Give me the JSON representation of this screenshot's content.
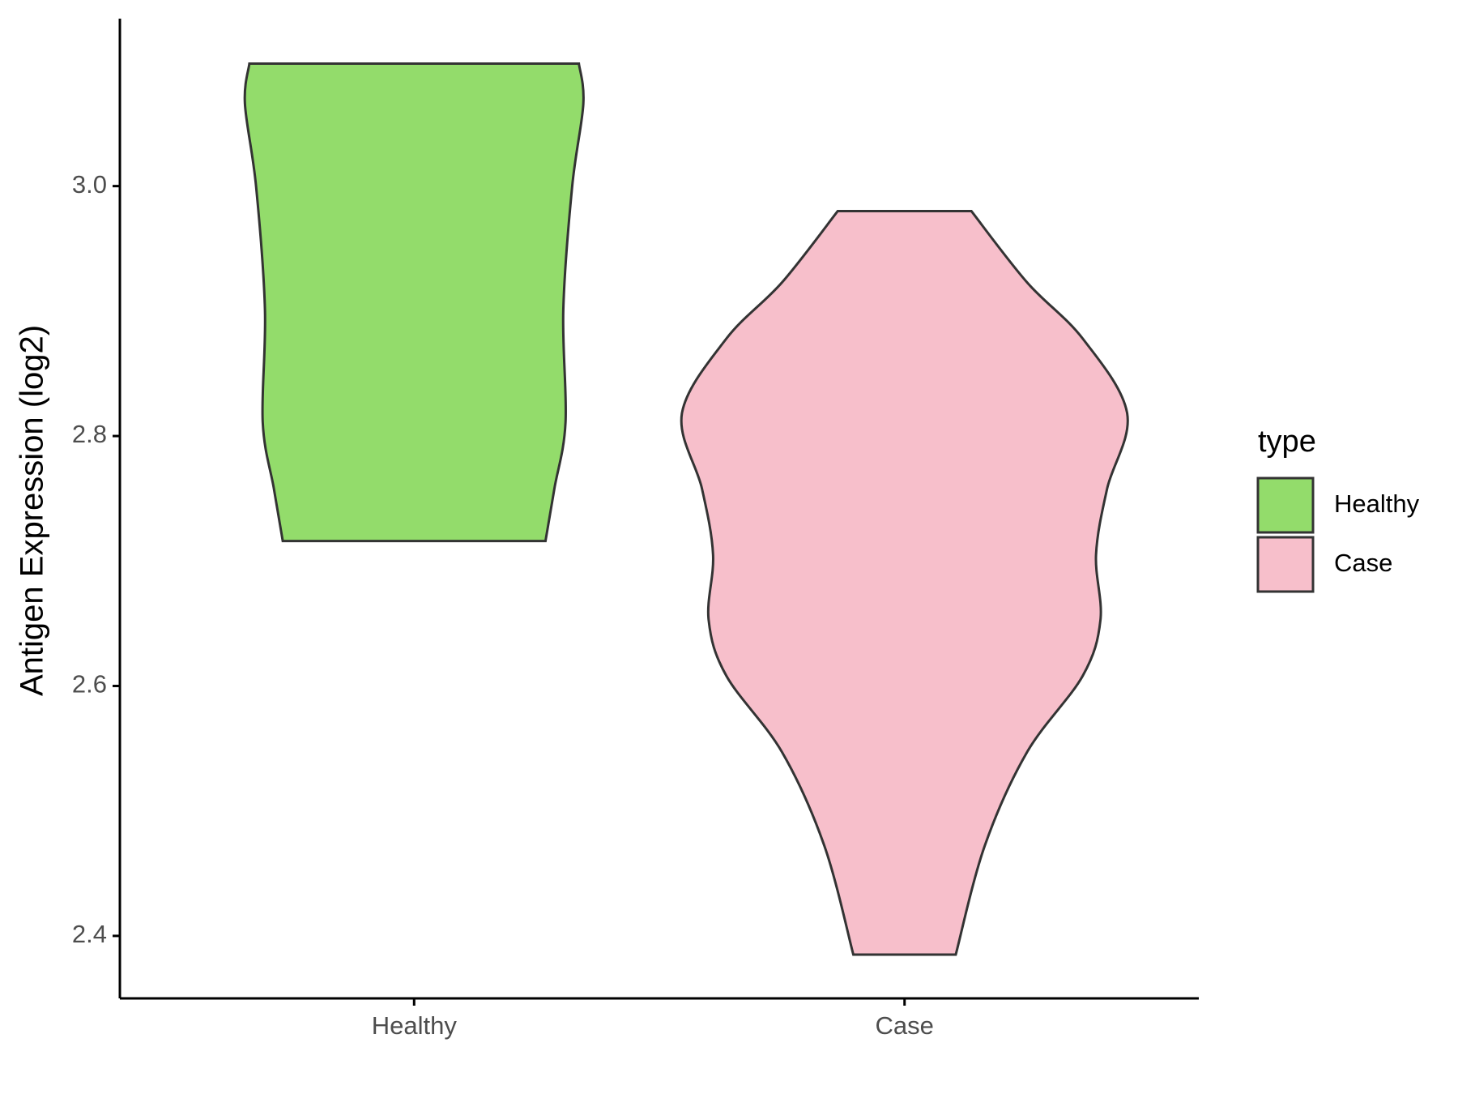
{
  "chart_data": {
    "type": "violin",
    "y_label": "Antigen Expression (log2)",
    "categories": [
      "Healthy",
      "Case"
    ],
    "legend_title": "type",
    "legend_position": "right",
    "series": [
      {
        "name": "Healthy",
        "color": "#93dc6b",
        "y": [
          3.098,
          3.066,
          3.0,
          2.901,
          2.811,
          2.758,
          2.716
        ],
        "density": [
          0.74,
          0.76,
          0.71,
          0.67,
          0.68,
          0.63,
          0.59
        ]
      },
      {
        "name": "Case",
        "color": "#f7bfcb",
        "y": [
          2.98,
          2.923,
          2.878,
          2.818,
          2.758,
          2.705,
          2.653,
          2.608,
          2.547,
          2.472,
          2.385
        ],
        "density": [
          0.3,
          0.55,
          0.8,
          1.0,
          0.91,
          0.86,
          0.88,
          0.8,
          0.55,
          0.36,
          0.23
        ]
      }
    ],
    "ylim": [
      2.35,
      3.134
    ],
    "yticks": [
      {
        "value": 2.4,
        "label": "2.4"
      },
      {
        "value": 2.6,
        "label": "2.6"
      },
      {
        "value": 2.8,
        "label": "2.8"
      },
      {
        "value": 3.0,
        "label": "3.0"
      }
    ],
    "grid": false
  }
}
